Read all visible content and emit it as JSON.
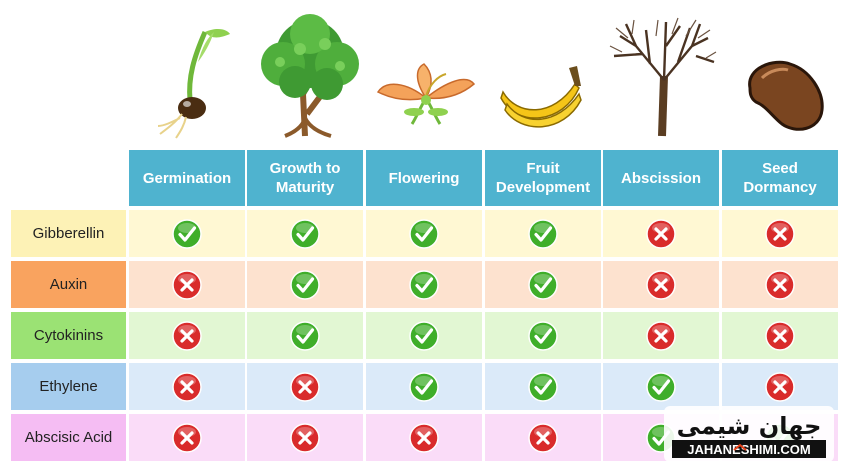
{
  "stages": [
    {
      "label": "Germination",
      "icon": "seedling-icon"
    },
    {
      "label": "Growth to Maturity",
      "icon": "leafy-tree-icon"
    },
    {
      "label": "Flowering",
      "icon": "flower-icon"
    },
    {
      "label": "Fruit Development",
      "icon": "banana-icon"
    },
    {
      "label": "Abscission",
      "icon": "bare-tree-icon"
    },
    {
      "label": "Seed Dormancy",
      "icon": "seed-icon"
    }
  ],
  "hormones": [
    {
      "label": "Gibberellin",
      "color": "#fdf2b6",
      "cell_color": "#fff8d3",
      "marks": [
        true,
        true,
        true,
        true,
        false,
        false
      ]
    },
    {
      "label": "Auxin",
      "color": "#f9a35f",
      "cell_color": "#fde2cf",
      "marks": [
        false,
        true,
        true,
        true,
        false,
        false
      ]
    },
    {
      "label": "Cytokinins",
      "color": "#9be274",
      "cell_color": "#e2f7d3",
      "marks": [
        false,
        true,
        true,
        true,
        false,
        false
      ]
    },
    {
      "label": "Ethylene",
      "color": "#a6cdee",
      "cell_color": "#dbeaf9",
      "marks": [
        false,
        false,
        true,
        true,
        true,
        false
      ]
    },
    {
      "label": "Abscisic Acid",
      "color": "#f5bdf3",
      "cell_color": "#fadcf8",
      "marks": [
        false,
        false,
        false,
        false,
        true,
        true
      ]
    }
  ],
  "colors": {
    "header": "#4fb3cf",
    "check": "#3fae2a",
    "cross": "#d92b2b"
  },
  "watermark": {
    "text_arabic": "جهان شیمی",
    "text_latin": "JAHANESHIMI.COM"
  }
}
